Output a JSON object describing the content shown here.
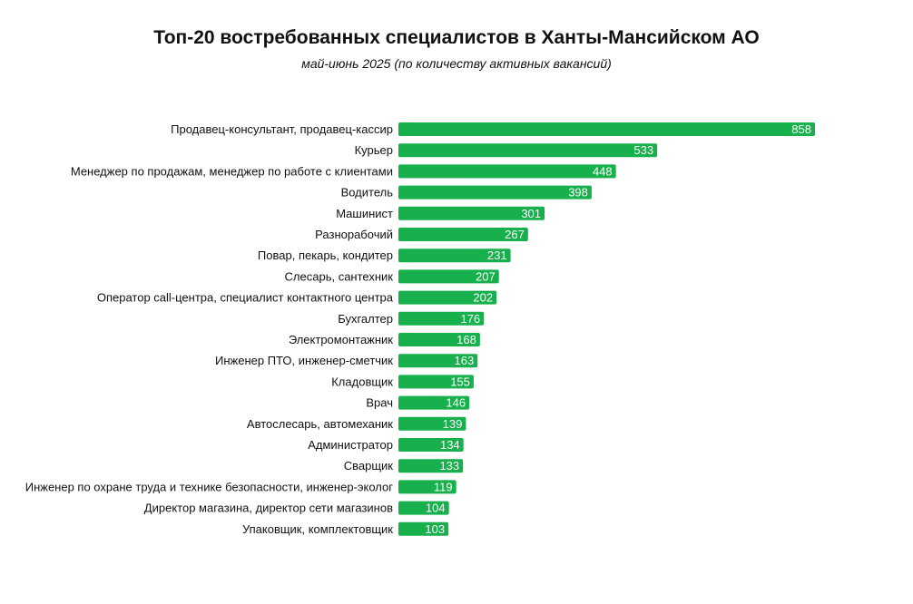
{
  "chart_data": {
    "type": "bar",
    "orientation": "horizontal",
    "title": "Топ-20 востребованных специалистов в Ханты-Мансийском АО",
    "subtitle": "май-июнь 2025 (по количеству активных вакансий)",
    "xlabel": "",
    "ylabel": "",
    "grid": false,
    "legend": "none",
    "bar_color": "#18b04c",
    "label_color": "#ffffff",
    "categories": [
      "Продавец-консультант, продавец-кассир",
      "Курьер",
      "Менеджер по продажам, менеджер по работе с клиентами",
      "Водитель",
      "Машинист",
      "Разнорабочий",
      "Повар, пекарь, кондитер",
      "Слесарь, сантехник",
      "Оператор call-центра, специалист контактного центра",
      "Бухгалтер",
      "Электромонтажник",
      "Инженер ПТО, инженер-сметчик",
      "Кладовщик",
      "Врач",
      "Автослесарь, автомеханик",
      "Администратор",
      "Сварщик",
      "Инженер по охране труда и технике безопасности, инженер-эколог",
      "Директор магазина, директор сети магазинов",
      "Упаковщик, комплектовщик"
    ],
    "values": [
      858,
      533,
      448,
      398,
      301,
      267,
      231,
      207,
      202,
      176,
      168,
      163,
      155,
      146,
      139,
      134,
      133,
      119,
      104,
      103
    ],
    "xlim": [
      0,
      858
    ]
  }
}
